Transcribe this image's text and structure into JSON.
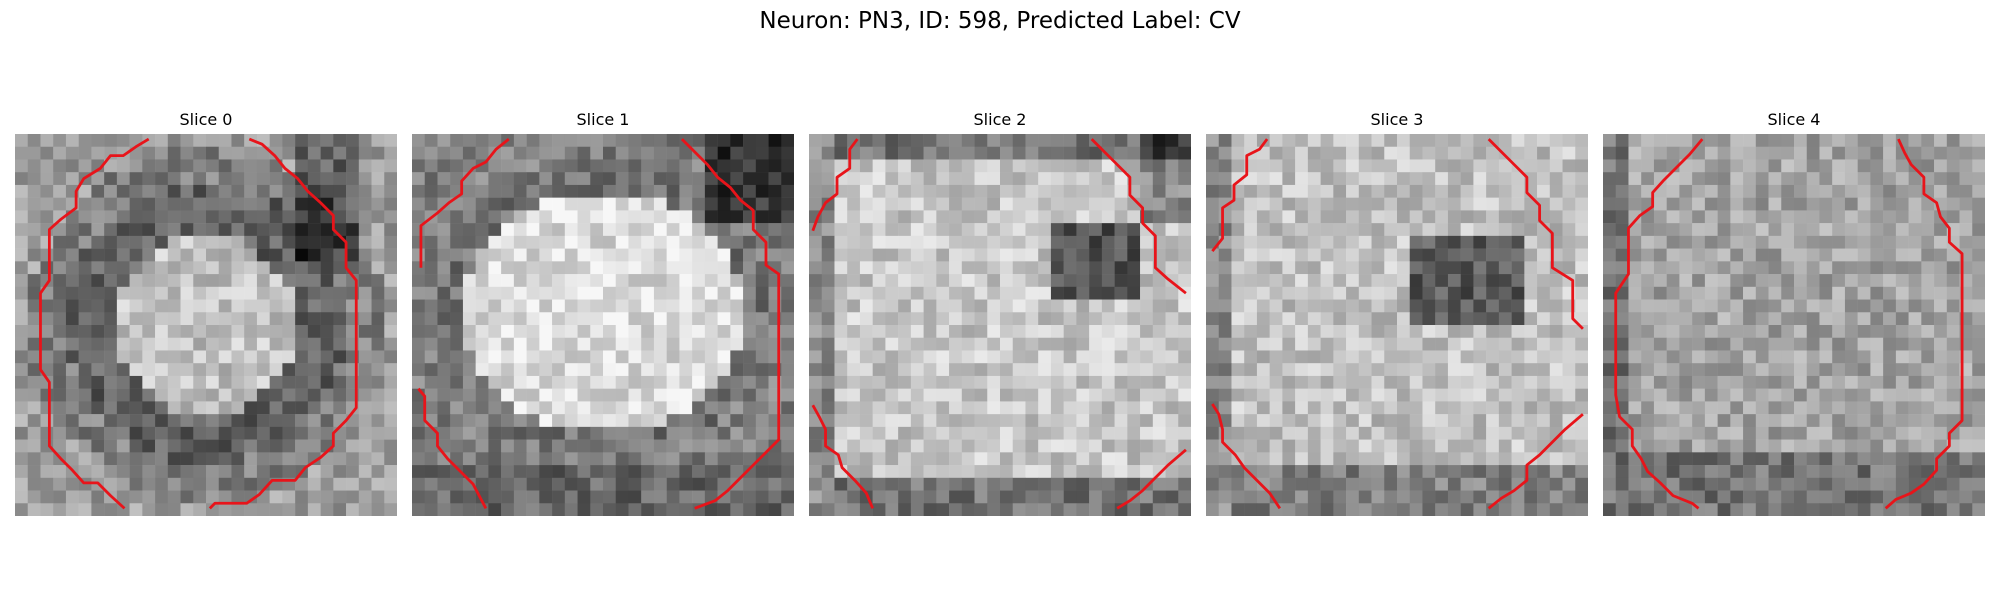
{
  "figure": {
    "title": "Neuron: PN3, ID: 598, Predicted Label: CV"
  },
  "colors": {
    "background": "#ffffff",
    "contour": "#e8141a"
  },
  "panels": [
    {
      "title": "Slice 0"
    },
    {
      "title": "Slice 1"
    },
    {
      "title": "Slice 2"
    },
    {
      "title": "Slice 3"
    },
    {
      "title": "Slice 4"
    }
  ]
}
